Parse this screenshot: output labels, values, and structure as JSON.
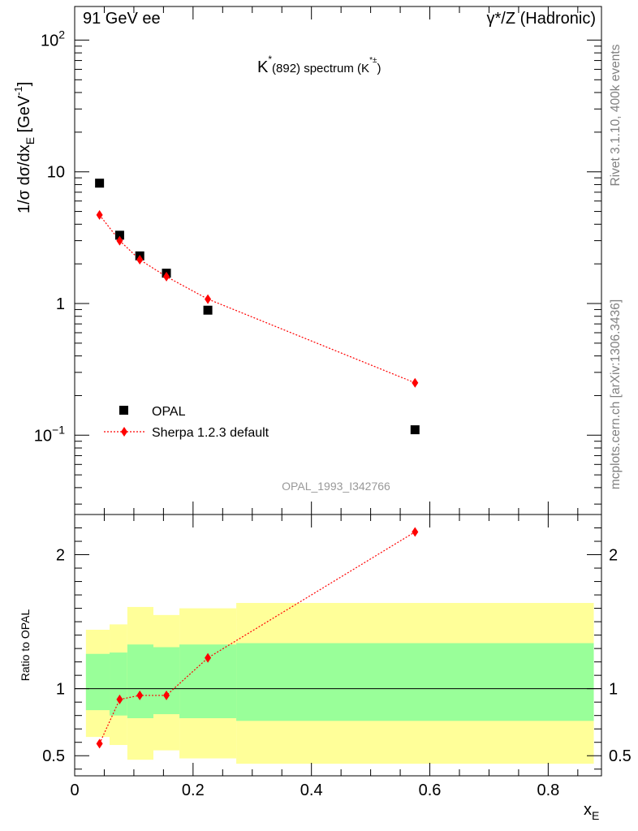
{
  "header": {
    "left": "91 GeV ee",
    "right": "γ*/Z (Hadronic)"
  },
  "side_labels": {
    "rivet": "Rivet 3.1.10,  400k events",
    "mcplots": "mcplots.cern.ch [arXiv:1306.3436]"
  },
  "watermark": "OPAL_1993_I342766",
  "colors": {
    "data": "#000000",
    "mc": "#ff0000",
    "band_inner": "#99ff99",
    "band_outer": "#ffff99"
  },
  "chart_data": [
    {
      "type": "scatter",
      "title": "K*(892) spectrum (K*±)",
      "title_parts": {
        "main": "K",
        "sup1": "*",
        "mid": "(892) spectrum (K",
        "sup2": "*±",
        "end": ")"
      },
      "ylabel": "1/σ dσ/dxE [GeV-1]",
      "ylabel_parts": {
        "main": "1/σ dσ/dx",
        "sub": "E",
        "rest": " [GeV",
        "sup": "-1",
        "end": "]"
      },
      "yscale": "log",
      "xlim": [
        0,
        0.89
      ],
      "ylim": [
        0.025,
        180
      ],
      "y_ticks": [
        {
          "value": 0.1,
          "base": "10",
          "exp": "−1"
        },
        {
          "value": 1,
          "base": "1",
          "exp": ""
        },
        {
          "value": 10,
          "base": "10",
          "exp": ""
        },
        {
          "value": 100,
          "base": "10",
          "exp": "2"
        }
      ],
      "legend_position": "lower-left",
      "series": [
        {
          "name": "OPAL",
          "marker": "square",
          "x": [
            0.042,
            0.076,
            0.11,
            0.155,
            0.225,
            0.575
          ],
          "y": [
            8.2,
            3.3,
            2.3,
            1.7,
            0.89,
            0.11
          ]
        },
        {
          "name": "Sherpa 1.2.3 default",
          "marker": "diamond",
          "line": "dotted",
          "x": [
            0.042,
            0.076,
            0.11,
            0.155,
            0.225,
            0.575
          ],
          "y": [
            4.7,
            3.0,
            2.15,
            1.6,
            1.08,
            0.25
          ]
        }
      ]
    },
    {
      "type": "line",
      "ylabel": "Ratio to OPAL",
      "xlabel": "xE",
      "xlabel_parts": {
        "main": "x",
        "sub": "E"
      },
      "xlim": [
        0,
        0.89
      ],
      "ylim": [
        0.35,
        2.3
      ],
      "x_ticks": [
        {
          "value": 0,
          "label": "0"
        },
        {
          "value": 0.2,
          "label": "0.2"
        },
        {
          "value": 0.4,
          "label": "0.4"
        },
        {
          "value": 0.6,
          "label": "0.6"
        },
        {
          "value": 0.8,
          "label": "0.8"
        }
      ],
      "y_ticks": [
        {
          "value": 0.5,
          "label": "0.5"
        },
        {
          "value": 1,
          "label": "1"
        },
        {
          "value": 2,
          "label": "2"
        }
      ],
      "reference": 1,
      "bands": [
        {
          "x0": 0.019,
          "x1": 0.059,
          "inner": [
            0.84,
            1.26
          ],
          "outer": [
            0.64,
            1.44
          ]
        },
        {
          "x0": 0.059,
          "x1": 0.089,
          "inner": [
            0.8,
            1.27
          ],
          "outer": [
            0.58,
            1.48
          ]
        },
        {
          "x0": 0.089,
          "x1": 0.133,
          "inner": [
            0.78,
            1.33
          ],
          "outer": [
            0.47,
            1.61
          ]
        },
        {
          "x0": 0.133,
          "x1": 0.177,
          "inner": [
            0.81,
            1.31
          ],
          "outer": [
            0.54,
            1.55
          ]
        },
        {
          "x0": 0.177,
          "x1": 0.273,
          "inner": [
            0.78,
            1.33
          ],
          "outer": [
            0.48,
            1.6
          ]
        },
        {
          "x0": 0.273,
          "x1": 0.877,
          "inner": [
            0.76,
            1.34
          ],
          "outer": [
            0.44,
            1.64
          ]
        }
      ],
      "series": [
        {
          "name": "Sherpa 1.2.3 default",
          "marker": "diamond",
          "line": "dotted",
          "x": [
            0.042,
            0.076,
            0.11,
            0.155,
            0.225,
            0.575
          ],
          "y": [
            0.59,
            0.92,
            0.95,
            0.95,
            1.23,
            2.17
          ]
        }
      ]
    }
  ]
}
